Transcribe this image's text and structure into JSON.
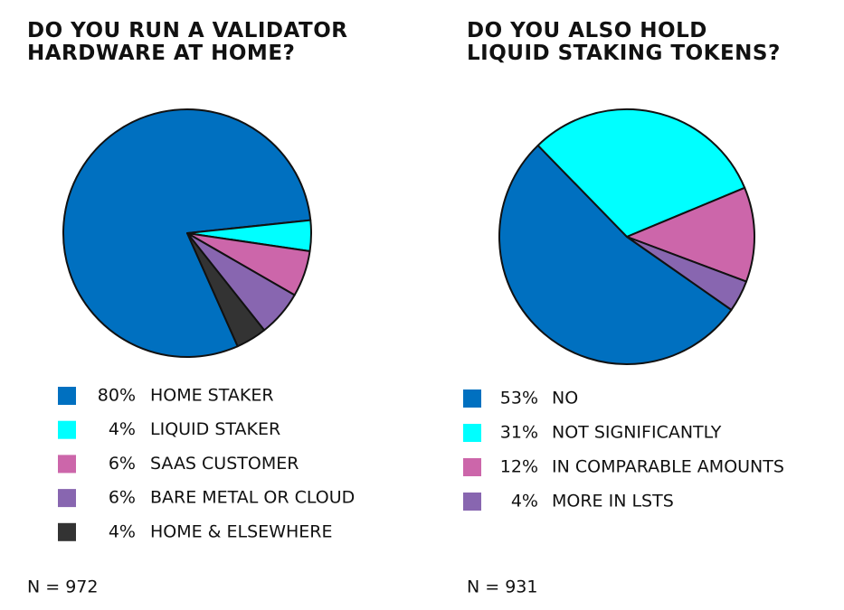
{
  "chart_data": [
    {
      "type": "pie",
      "title": "DO YOU RUN A VALIDATOR HARDWARE AT HOME?",
      "categories": [
        "HOME STAKER",
        "LIQUID STAKER",
        "SAAS CUSTOMER",
        "BARE METAL OR CLOUD",
        "HOME & ELSEWHERE"
      ],
      "values": [
        80,
        4,
        6,
        6,
        4
      ],
      "value_labels": [
        "80%",
        "4%",
        "6%",
        "6%",
        "4%"
      ],
      "colors": [
        "#0070c0",
        "#00ffff",
        "#cc66aa",
        "#8866b0",
        "#333333"
      ],
      "annotation": "N = 972"
    },
    {
      "type": "pie",
      "title": "DO YOU ALSO HOLD LIQUID STAKING TOKENS?",
      "categories": [
        "NO",
        "NOT SIGNIFICANTLY",
        "IN COMPARABLE AMOUNTS",
        "MORE IN LSTS"
      ],
      "values": [
        53,
        31,
        12,
        4
      ],
      "value_labels": [
        "53%",
        "31%",
        "12%",
        "4%"
      ],
      "colors": [
        "#0070c0",
        "#00ffff",
        "#cc66aa",
        "#8866b0"
      ],
      "annotation": "N = 931"
    }
  ]
}
